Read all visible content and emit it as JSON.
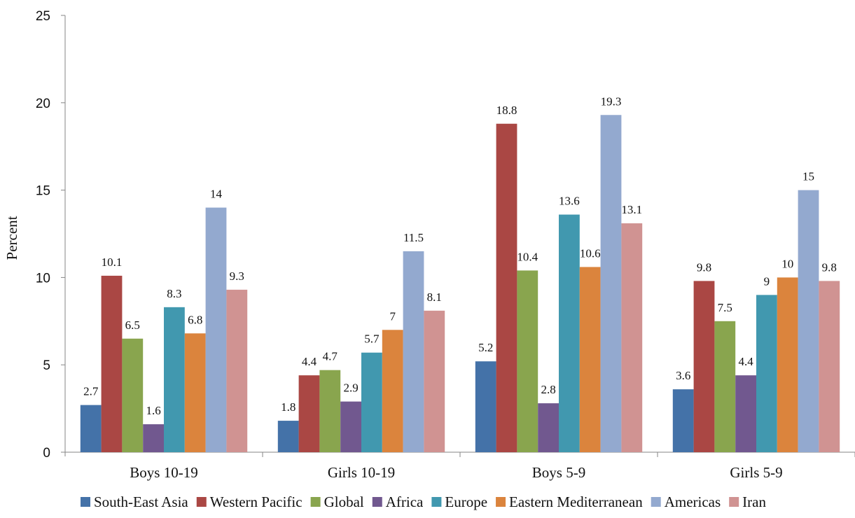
{
  "chart_data": {
    "type": "bar",
    "title": "",
    "xlabel": "",
    "ylabel": "Percent",
    "ylim": [
      0,
      25
    ],
    "yticks": [
      "0",
      "5",
      "10",
      "15",
      "20",
      "25"
    ],
    "grid": false,
    "legend_position": "bottom",
    "categories": [
      "Boys 10-19",
      "Girls 10-19",
      "Boys 5-9",
      "Girls 5-9"
    ],
    "series": [
      {
        "name": "South-East Asia",
        "color": "#4472a8",
        "values": [
          2.7,
          1.8,
          5.2,
          3.6
        ],
        "labels": [
          "2.7",
          "1.8",
          "5.2",
          "3.6"
        ]
      },
      {
        "name": "Western Pacific",
        "color": "#aa4744",
        "values": [
          10.1,
          4.4,
          18.8,
          9.8
        ],
        "labels": [
          "10.1",
          "4.4",
          "18.8",
          "9.8"
        ]
      },
      {
        "name": "Global",
        "color": "#89a54e",
        "values": [
          6.5,
          4.7,
          10.4,
          7.5
        ],
        "labels": [
          "6.5",
          "4.7",
          "10.4",
          "7.5"
        ]
      },
      {
        "name": "Africa",
        "color": "#71588f",
        "values": [
          1.6,
          2.9,
          2.8,
          4.4
        ],
        "labels": [
          "1.6",
          "2.9",
          "2.8",
          "4.4"
        ]
      },
      {
        "name": "Europe",
        "color": "#4198af",
        "values": [
          8.3,
          5.7,
          13.6,
          9.0
        ],
        "labels": [
          "8.3",
          "5.7",
          "13.6",
          "9"
        ]
      },
      {
        "name": "Eastern Mediterranean",
        "color": "#db843d",
        "values": [
          6.8,
          7.0,
          10.6,
          10.0
        ],
        "labels": [
          "6.8",
          "7",
          "10.6",
          "10"
        ]
      },
      {
        "name": "Americas",
        "color": "#93a9cf",
        "values": [
          14.0,
          11.5,
          19.3,
          15.0
        ],
        "labels": [
          "14",
          "11.5",
          "19.3",
          "15"
        ]
      },
      {
        "name": "Iran",
        "color": "#d09392",
        "values": [
          9.3,
          8.1,
          13.1,
          9.8
        ],
        "labels": [
          "9.3",
          "8.1",
          "13.1",
          "9.8"
        ]
      }
    ]
  }
}
